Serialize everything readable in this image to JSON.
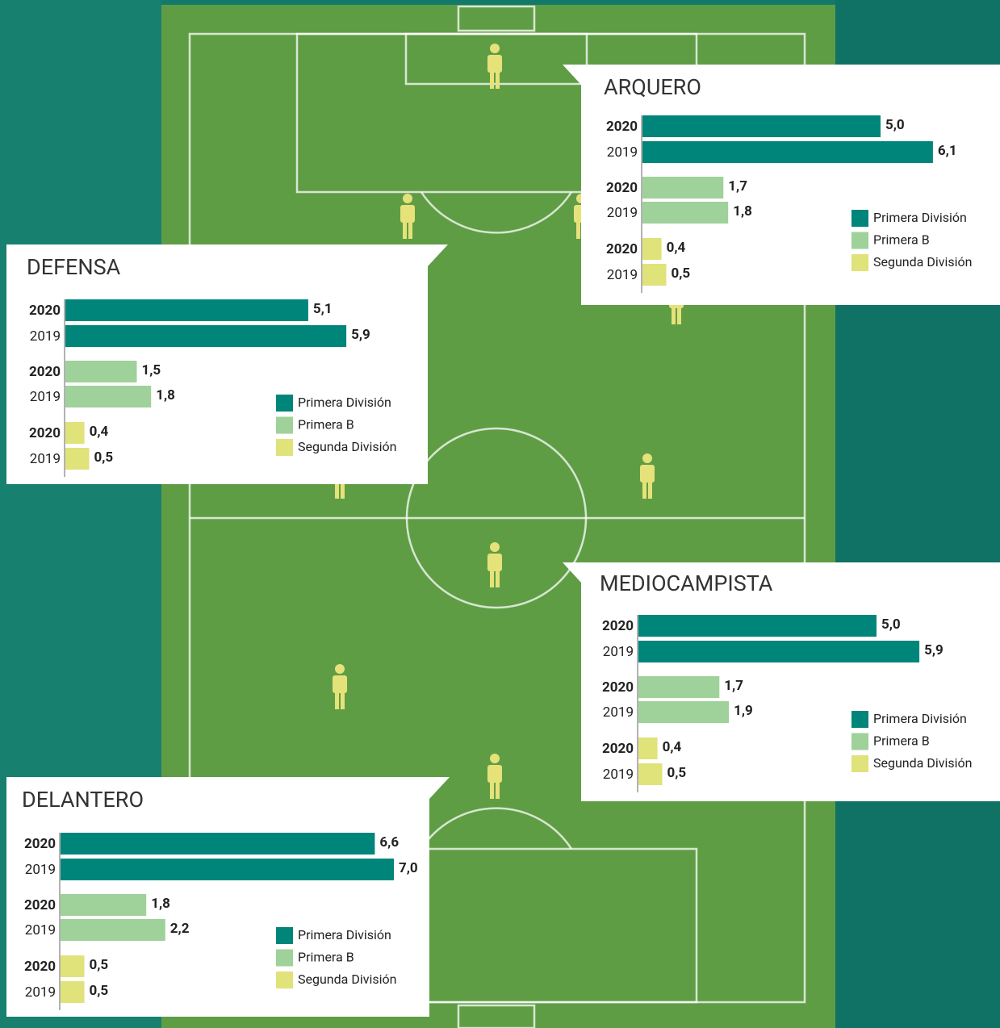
{
  "chart_data": [
    {
      "type": "bar",
      "title": "ARQUERO",
      "categories": [
        "2020",
        "2019"
      ],
      "series": [
        {
          "name": "Primera División",
          "color": "#00857a",
          "values": [
            5.0,
            6.1
          ],
          "value_labels": [
            "5,0",
            "6,1"
          ]
        },
        {
          "name": "Primera B",
          "color": "#9fd19a",
          "values": [
            1.7,
            1.8
          ],
          "value_labels": [
            "1,7",
            "1,8"
          ]
        },
        {
          "name": "Segunda División",
          "color": "#e0e27a",
          "values": [
            0.4,
            0.5
          ],
          "value_labels": [
            "0,4",
            "0,5"
          ]
        }
      ]
    },
    {
      "type": "bar",
      "title": "DEFENSA",
      "categories": [
        "2020",
        "2019"
      ],
      "series": [
        {
          "name": "Primera División",
          "color": "#00857a",
          "values": [
            5.1,
            5.9
          ],
          "value_labels": [
            "5,1",
            "5,9"
          ]
        },
        {
          "name": "Primera B",
          "color": "#9fd19a",
          "values": [
            1.5,
            1.8
          ],
          "value_labels": [
            "1,5",
            "1,8"
          ]
        },
        {
          "name": "Segunda División",
          "color": "#e0e27a",
          "values": [
            0.4,
            0.5
          ],
          "value_labels": [
            "0,4",
            "0,5"
          ]
        }
      ]
    },
    {
      "type": "bar",
      "title": "MEDIOCAMPISTA",
      "categories": [
        "2020",
        "2019"
      ],
      "series": [
        {
          "name": "Primera División",
          "color": "#00857a",
          "values": [
            5.0,
            5.9
          ],
          "value_labels": [
            "5,0",
            "5,9"
          ]
        },
        {
          "name": "Primera B",
          "color": "#9fd19a",
          "values": [
            1.7,
            1.9
          ],
          "value_labels": [
            "1,7",
            "1,9"
          ]
        },
        {
          "name": "Segunda División",
          "color": "#e0e27a",
          "values": [
            0.4,
            0.5
          ],
          "value_labels": [
            "0,4",
            "0,5"
          ]
        }
      ]
    },
    {
      "type": "bar",
      "title": "DELANTERO",
      "categories": [
        "2020",
        "2019"
      ],
      "series": [
        {
          "name": "Primera División",
          "color": "#00857a",
          "values": [
            6.6,
            7.0
          ],
          "value_labels": [
            "6,6",
            "7,0"
          ]
        },
        {
          "name": "Primera B",
          "color": "#9fd19a",
          "values": [
            1.8,
            2.2
          ],
          "value_labels": [
            "1,8",
            "2,2"
          ]
        },
        {
          "name": "Segunda División",
          "color": "#e0e27a",
          "values": [
            0.5,
            0.5
          ],
          "value_labels": [
            "0,5",
            "0,5"
          ]
        }
      ]
    }
  ]
}
